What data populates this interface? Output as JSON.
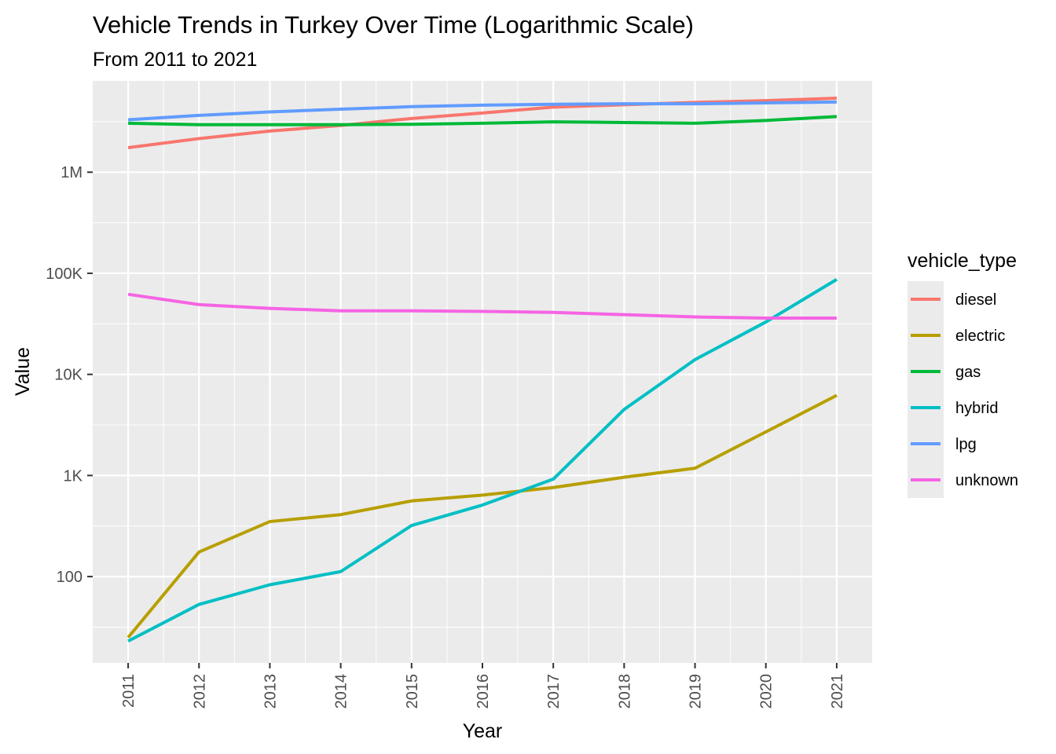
{
  "chart_data": {
    "type": "line",
    "title": "Vehicle Trends in Turkey Over Time (Logarithmic Scale)",
    "subtitle": "From 2011 to 2021",
    "xlabel": "Year",
    "ylabel": "Value",
    "yscale": "log10",
    "ylim": [
      14,
      8000000
    ],
    "x": [
      2011,
      2012,
      2013,
      2014,
      2015,
      2016,
      2017,
      2018,
      2019,
      2020,
      2021
    ],
    "y_ticks": [
      {
        "value": 100,
        "label": "100"
      },
      {
        "value": 1000,
        "label": "1K"
      },
      {
        "value": 10000,
        "label": "10K"
      },
      {
        "value": 100000,
        "label": "100K"
      },
      {
        "value": 1000000,
        "label": "1M"
      }
    ],
    "x_tick_labels": [
      "2011",
      "2012",
      "2013",
      "2014",
      "2015",
      "2016",
      "2017",
      "2018",
      "2019",
      "2020",
      "2021"
    ],
    "grid": true,
    "legend": {
      "title": "vehicle_type",
      "position": "right"
    },
    "series": [
      {
        "name": "diesel",
        "color": "#F8766D",
        "values": [
          1750000,
          2150000,
          2550000,
          2900000,
          3400000,
          3850000,
          4400000,
          4650000,
          4900000,
          5100000,
          5400000
        ]
      },
      {
        "name": "electric",
        "color": "#B79F00",
        "values": [
          25,
          175,
          350,
          410,
          560,
          640,
          760,
          960,
          1180,
          2700,
          6200
        ]
      },
      {
        "name": "gas",
        "color": "#00BA38",
        "values": [
          3050000,
          2950000,
          2950000,
          2950000,
          2980000,
          3050000,
          3150000,
          3100000,
          3050000,
          3250000,
          3550000
        ]
      },
      {
        "name": "hybrid",
        "color": "#00BFC4",
        "values": [
          23,
          53,
          83,
          112,
          320,
          510,
          920,
          4500,
          14000,
          33000,
          87000
        ]
      },
      {
        "name": "lpg",
        "color": "#619CFF",
        "values": [
          3300000,
          3650000,
          3950000,
          4200000,
          4450000,
          4600000,
          4700000,
          4750000,
          4750000,
          4850000,
          4950000
        ]
      },
      {
        "name": "unknown",
        "color": "#F564E3",
        "values": [
          62000,
          49000,
          45000,
          42500,
          42500,
          42000,
          41000,
          39000,
          37000,
          36000,
          36000
        ]
      }
    ]
  }
}
